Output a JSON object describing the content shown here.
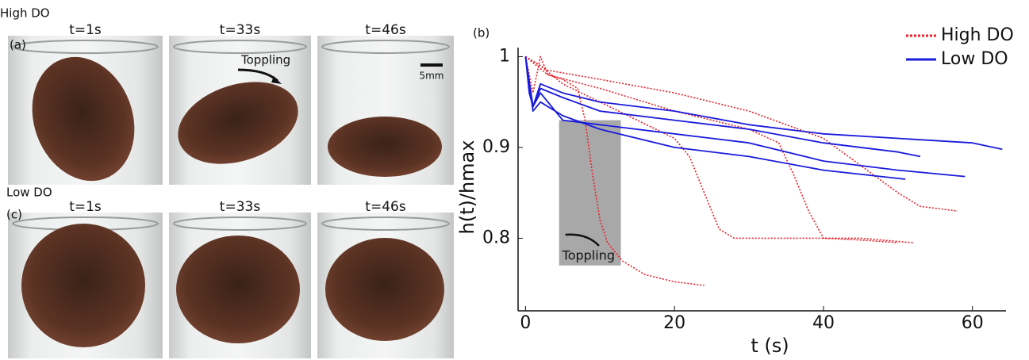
{
  "figure_texts": {
    "high_do": "High DO",
    "low_do": "Low DO",
    "panel_a": "(a)",
    "panel_c": "(c)",
    "toppling_photo": "Toppling",
    "scale_bar": "5mm"
  },
  "panels": [
    {
      "row": "a",
      "times": [
        "t=1s",
        "t=33s",
        "t=46s"
      ]
    },
    {
      "row": "c",
      "times": [
        "t=1s",
        "t=33s",
        "t=46s"
      ]
    }
  ],
  "chart_data": {
    "type": "line",
    "label": "(b)",
    "x_label": "t (s)",
    "y_label": "h(t)/hmax",
    "xlim": [
      -1,
      64.5
    ],
    "ylim": [
      0.72,
      1.01
    ],
    "xticks": [
      0,
      20,
      40,
      60
    ],
    "yticks": [
      0.8,
      0.9,
      1
    ],
    "legend": "top-right",
    "shaded_region": {
      "x": [
        4.5,
        12.8
      ],
      "y": [
        0.77,
        0.93
      ],
      "color": "#a8a8a8",
      "label": "Toppling"
    },
    "series": [
      {
        "name": "High DO",
        "color": "#e8202a",
        "dash": true,
        "lines": [
          {
            "x": [
              0,
              1,
              2,
              3,
              5,
              7,
              8,
              9,
              10,
              11,
              13,
              16,
              20,
              24
            ],
            "values": [
              1,
              0.96,
              1.0,
              0.98,
              0.975,
              0.965,
              0.93,
              0.87,
              0.82,
              0.795,
              0.775,
              0.76,
              0.752,
              0.748
            ]
          },
          {
            "x": [
              0,
              2,
              5,
              10,
              15,
              20,
              22,
              24,
              26,
              28,
              30,
              35,
              40,
              45,
              50
            ],
            "values": [
              1,
              0.99,
              0.97,
              0.95,
              0.93,
              0.91,
              0.89,
              0.85,
              0.81,
              0.8,
              0.8,
              0.8,
              0.8,
              0.798,
              0.795
            ]
          },
          {
            "x": [
              0,
              3,
              10,
              20,
              30,
              34,
              36,
              38,
              40,
              45,
              52
            ],
            "values": [
              1,
              0.98,
              0.965,
              0.94,
              0.92,
              0.905,
              0.87,
              0.83,
              0.8,
              0.8,
              0.795
            ]
          },
          {
            "x": [
              0,
              3,
              10,
              20,
              30,
              40,
              45,
              50,
              53,
              58
            ],
            "values": [
              1,
              0.985,
              0.975,
              0.96,
              0.94,
              0.91,
              0.88,
              0.85,
              0.835,
              0.83
            ]
          }
        ]
      },
      {
        "name": "Low DO",
        "color": "#1a1adc",
        "dash": false,
        "lines": [
          {
            "x": [
              0,
              0.5,
              1,
              2,
              5,
              10,
              20,
              30,
              40,
              50,
              60,
              64
            ],
            "values": [
              1,
              0.96,
              0.945,
              0.97,
              0.96,
              0.95,
              0.94,
              0.925,
              0.915,
              0.91,
              0.905,
              0.898
            ]
          },
          {
            "x": [
              0,
              1,
              2,
              5,
              10,
              20,
              30,
              40,
              50,
              53
            ],
            "values": [
              1,
              0.945,
              0.965,
              0.955,
              0.94,
              0.93,
              0.92,
              0.905,
              0.895,
              0.89
            ]
          },
          {
            "x": [
              0,
              1,
              2,
              5,
              10,
              20,
              30,
              40,
              50,
              59
            ],
            "values": [
              1,
              0.945,
              0.96,
              0.93,
              0.925,
              0.915,
              0.905,
              0.885,
              0.875,
              0.868
            ]
          },
          {
            "x": [
              0,
              1,
              2,
              5,
              10,
              20,
              30,
              40,
              51
            ],
            "values": [
              1,
              0.94,
              0.95,
              0.935,
              0.92,
              0.9,
              0.89,
              0.875,
              0.865
            ]
          }
        ]
      }
    ]
  }
}
